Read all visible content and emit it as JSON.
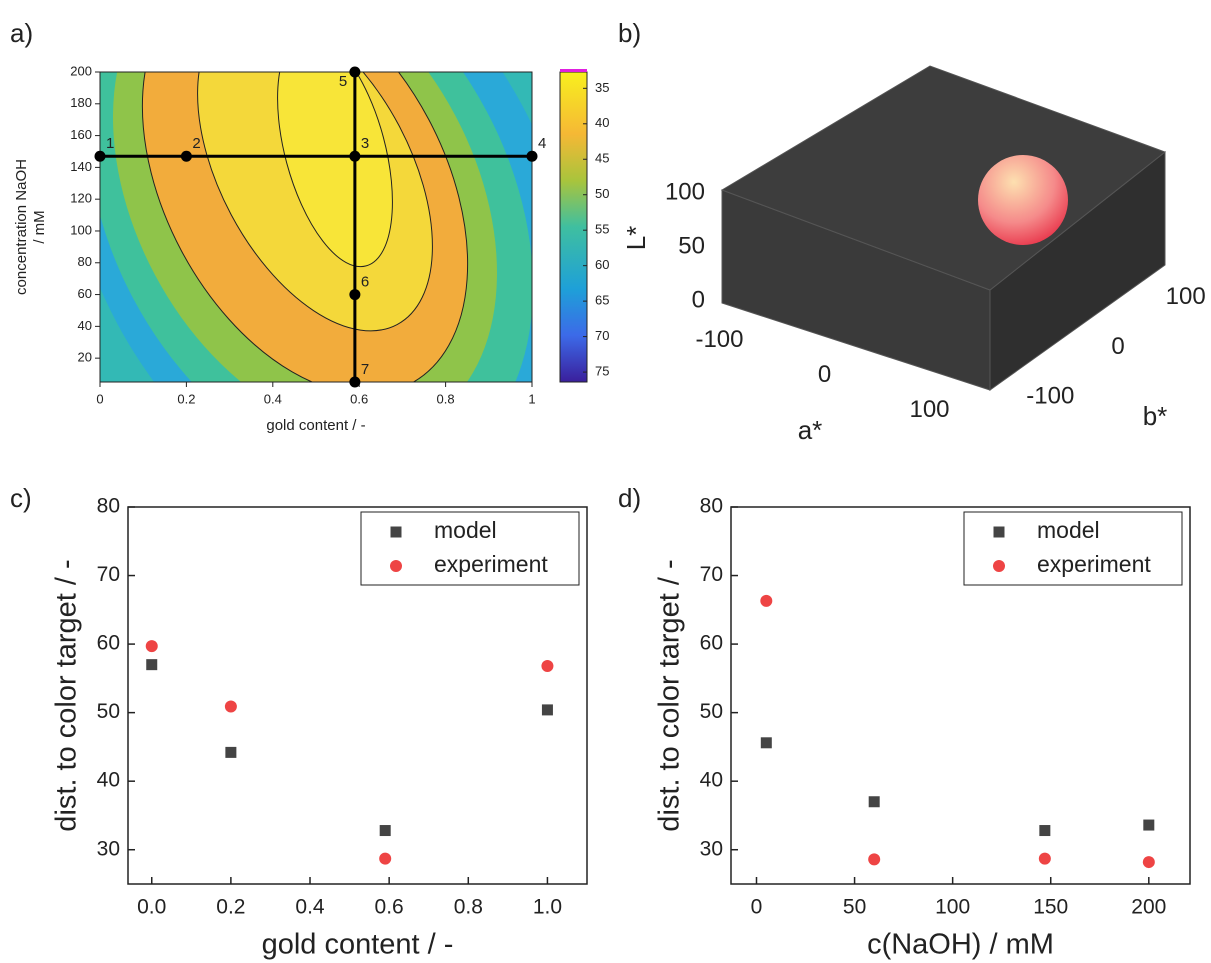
{
  "chart_data": [
    {
      "type": "contour",
      "panel_label": "a)",
      "xlabel": "gold content / -",
      "ylabel": [
        "concentration NaOH",
        "/ mM"
      ],
      "xlim": [
        0,
        1
      ],
      "xticks": [
        0,
        0.2,
        0.4,
        0.6,
        0.8,
        1
      ],
      "ylim": [
        5,
        200
      ],
      "yticks": [
        20,
        40,
        60,
        80,
        100,
        120,
        140,
        160,
        180,
        200
      ],
      "clim": [
        32.7,
        76.4
      ],
      "cticks": [
        35,
        40,
        45,
        50,
        55,
        60,
        65,
        70,
        75
      ],
      "points": {
        "labels": [
          "1",
          "2",
          "3",
          "4",
          "5",
          "6",
          "7"
        ],
        "x": [
          0,
          0.2,
          0.59,
          1,
          0.59,
          0.59,
          0.59
        ],
        "y": [
          147,
          147,
          147,
          147,
          200,
          60,
          5
        ]
      }
    },
    {
      "type": "box3d",
      "panel_label": "b)",
      "xlabel": "a*",
      "ylabel": "b*",
      "zlabel": "L*",
      "xlim": [
        -130,
        130
      ],
      "xticks": [
        -100,
        0,
        100
      ],
      "ylim": [
        -130,
        130
      ],
      "yticks": [
        -100,
        0,
        100
      ],
      "zlim": [
        0,
        100
      ],
      "zticks": [
        0,
        50,
        100
      ]
    },
    {
      "type": "scatter",
      "panel_label": "c)",
      "xlabel": "gold content / -",
      "ylabel": "dist. to color target / -",
      "xlim": [
        -0.06,
        1.1
      ],
      "xticks": [
        {
          "value": 0,
          "label": "0.0"
        },
        0.2,
        0.4,
        0.6,
        0.8,
        {
          "value": 1,
          "label": "1.0"
        }
      ],
      "ylim": [
        25,
        80
      ],
      "yticks": [
        30,
        40,
        50,
        60,
        70,
        80
      ],
      "x": [
        0,
        0.2,
        0.59,
        1
      ],
      "series": [
        {
          "name": "model",
          "color": "#444444",
          "marker": "square",
          "values": [
            57,
            44.2,
            32.8,
            50.4
          ]
        },
        {
          "name": "experiment",
          "color": "#ee4444",
          "marker": "circle",
          "values": [
            59.7,
            50.9,
            28.7,
            56.8
          ]
        }
      ]
    },
    {
      "type": "scatter",
      "panel_label": "d)",
      "xlabel": "c(NaOH) / mM",
      "ylabel": "dist. to color target / -",
      "xlim": [
        -13,
        221
      ],
      "xticks": [
        0,
        50,
        100,
        150,
        200
      ],
      "ylim": [
        25,
        80
      ],
      "yticks": [
        30,
        40,
        50,
        60,
        70,
        80
      ],
      "x": [
        5,
        60,
        147,
        200
      ],
      "series": [
        {
          "name": "model",
          "color": "#444444",
          "marker": "square",
          "values": [
            45.6,
            37,
            32.8,
            33.6
          ]
        },
        {
          "name": "experiment",
          "color": "#ee4444",
          "marker": "circle",
          "values": [
            66.3,
            28.6,
            28.7,
            28.2
          ]
        }
      ]
    }
  ]
}
